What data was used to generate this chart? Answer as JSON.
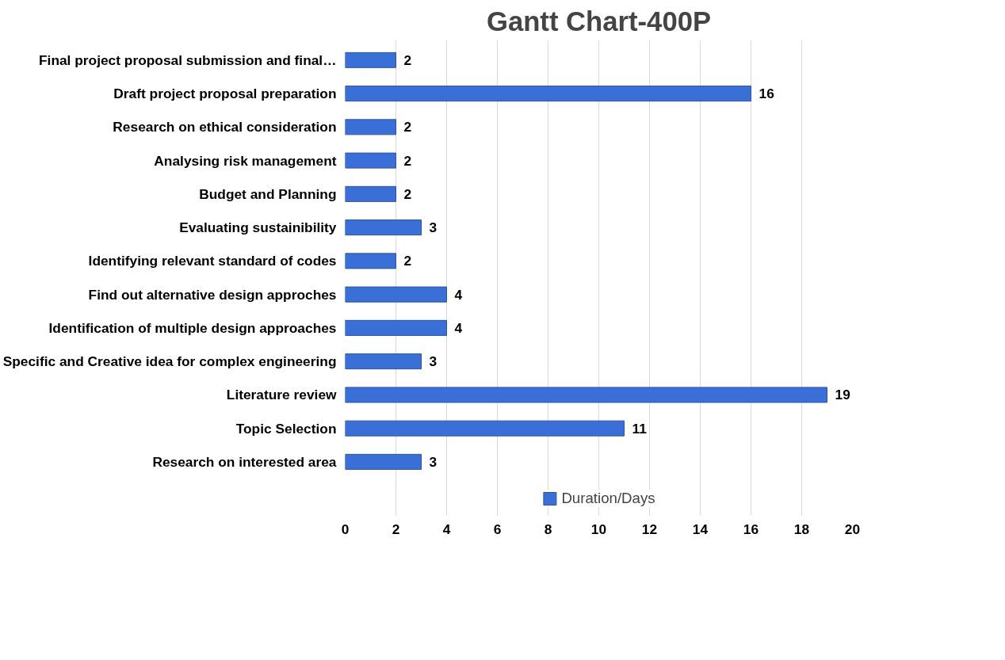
{
  "chart_data": {
    "type": "bar",
    "orientation": "horizontal",
    "title": "Gantt Chart-400P",
    "categories": [
      "Final project proposal submission and final…",
      "Draft project proposal preparation",
      "Research on ethical consideration",
      "Analysing risk management",
      "Budget and Planning",
      "Evaluating sustainibility",
      "Identifying relevant standard of codes",
      "Find out alternative design approches",
      "Identification of multiple design approaches",
      "Specific and Creative idea for complex engineering",
      "Literature review",
      "Topic Selection",
      "Research on interested area"
    ],
    "series": [
      {
        "name": "Duration/Days",
        "color": "#3a6fd8",
        "values": [
          2,
          16,
          2,
          2,
          2,
          3,
          2,
          4,
          4,
          3,
          19,
          11,
          3
        ]
      }
    ],
    "xlim": [
      0,
      20
    ],
    "xticks": [
      0,
      2,
      4,
      6,
      8,
      10,
      12,
      14,
      16,
      18,
      20
    ],
    "grid": "x",
    "legend": "bottom",
    "data_labels": true
  }
}
